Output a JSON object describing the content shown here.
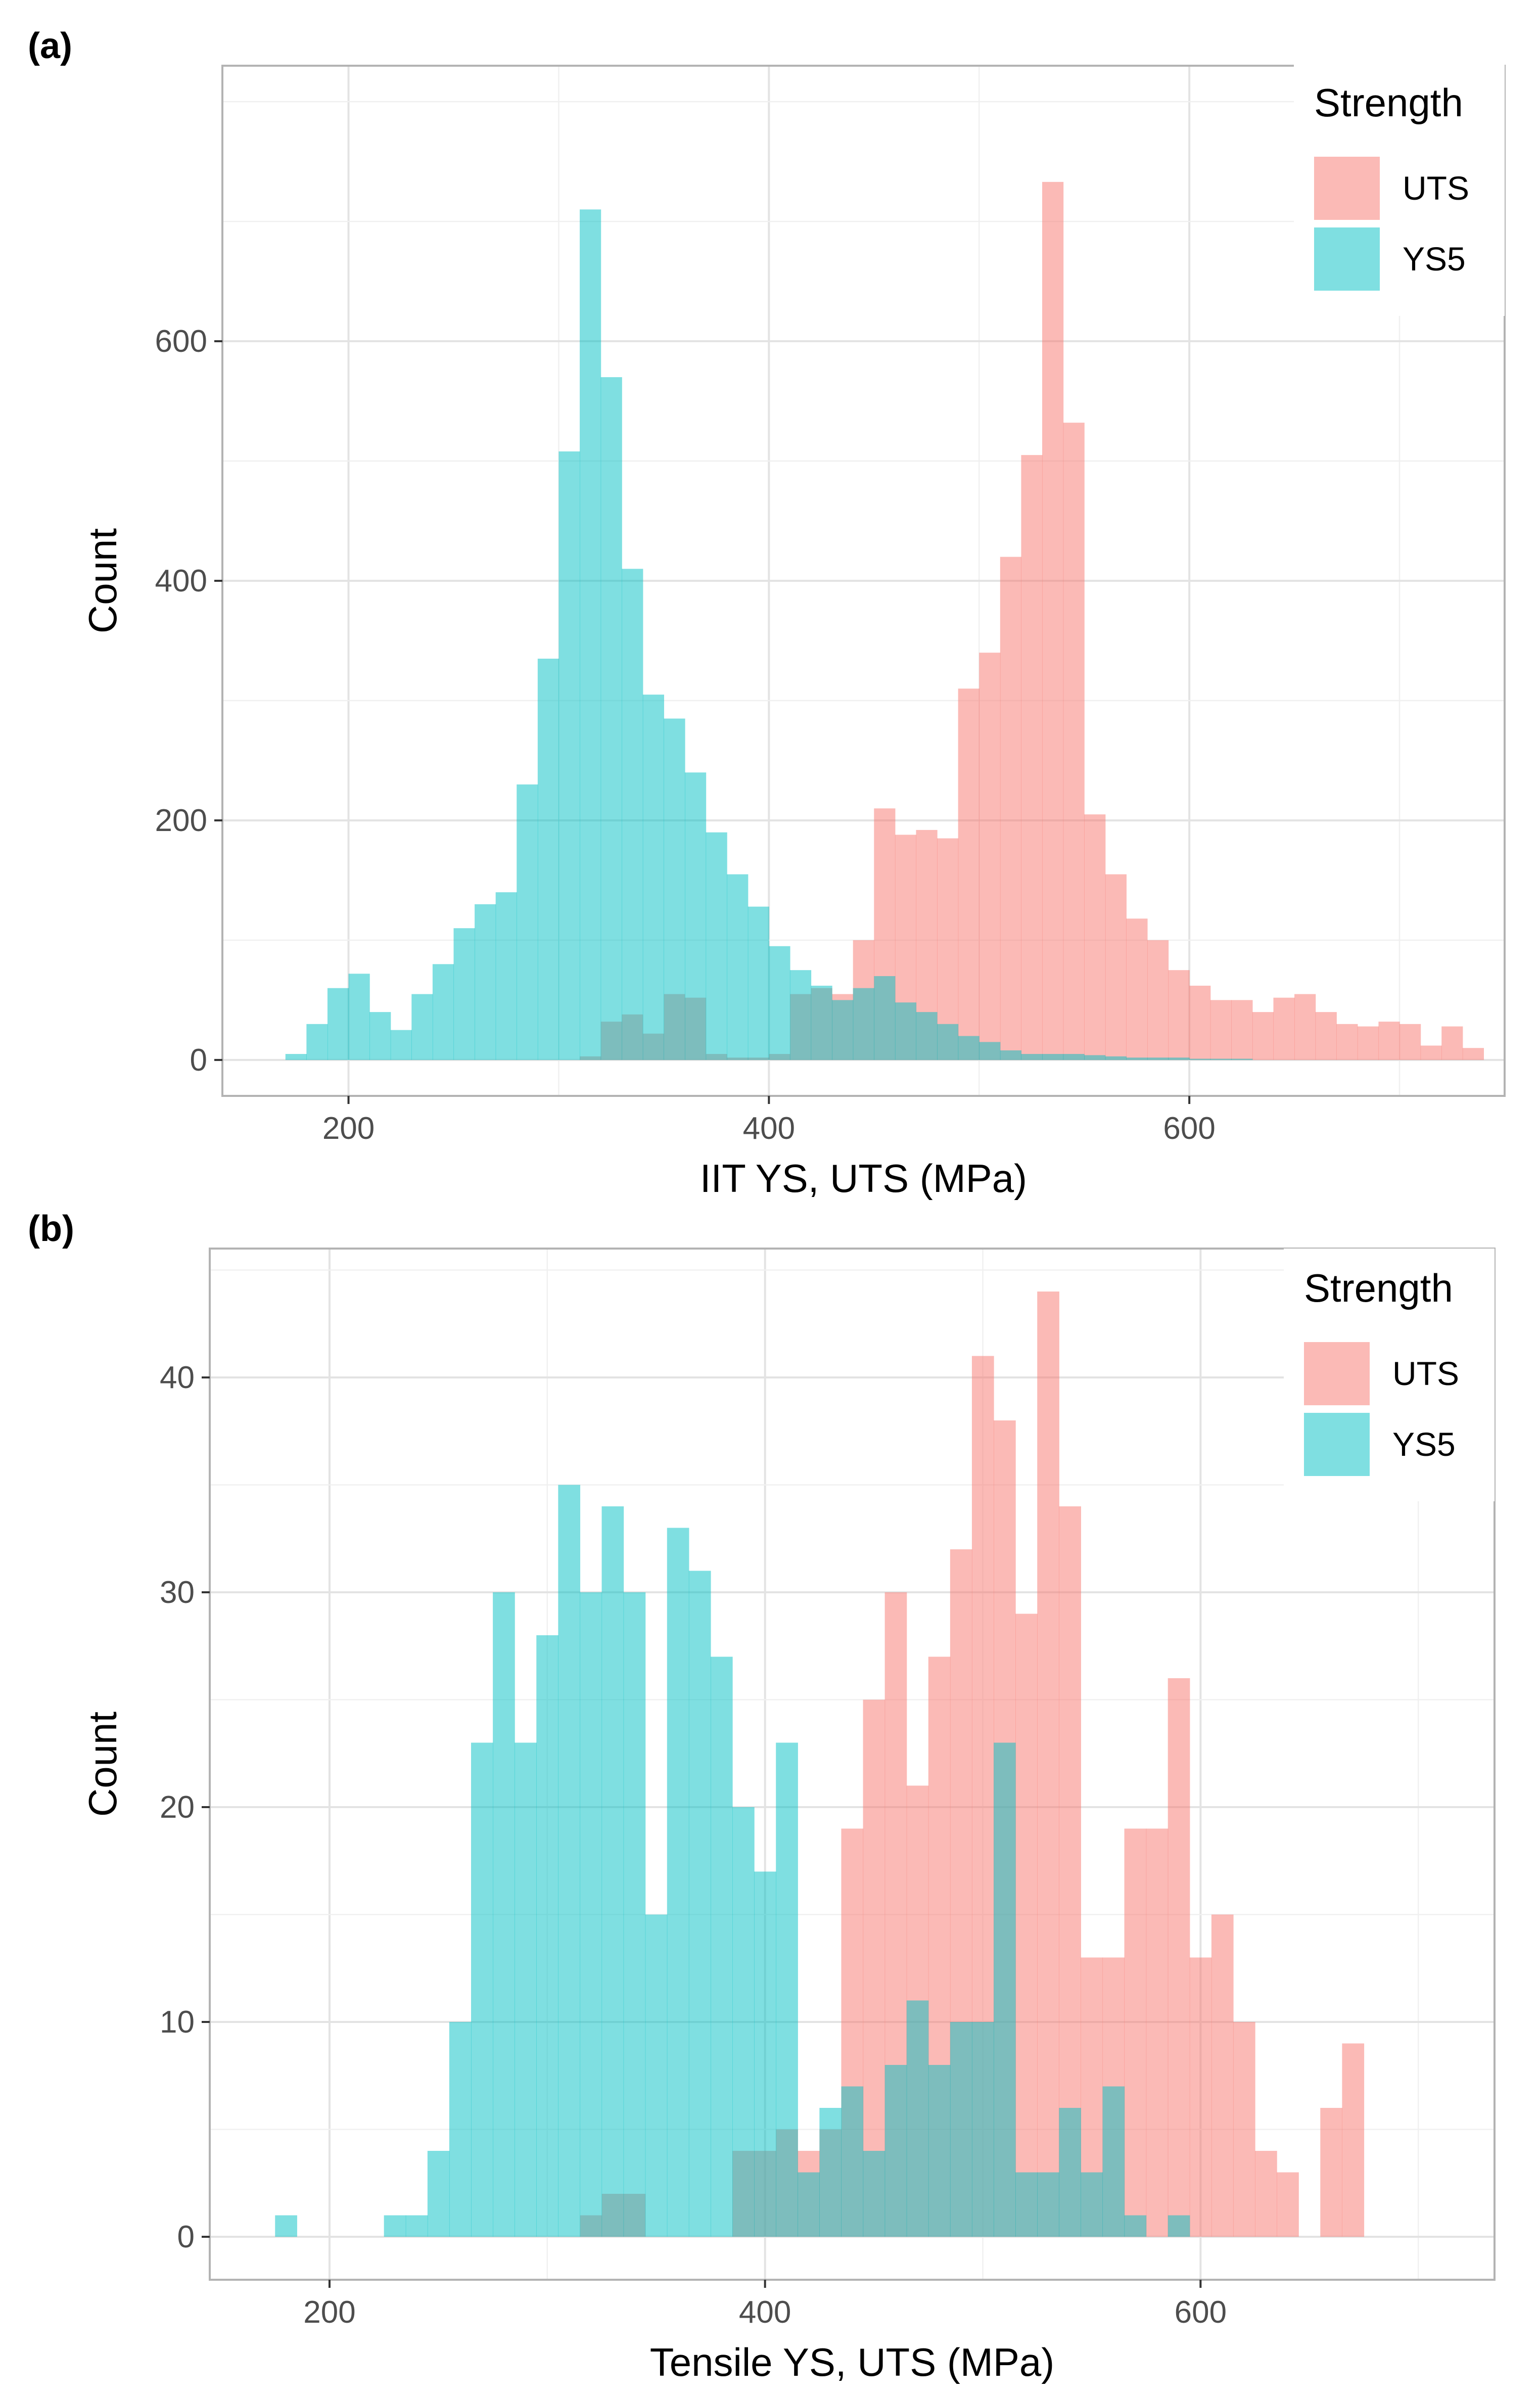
{
  "chart_data": [
    {
      "panel": "(a)",
      "type": "bar",
      "subtype": "histogram",
      "xlabel": "IIT YS, UTS (MPa)",
      "ylabel": "Count",
      "xlim": [
        140,
        750
      ],
      "ylim": [
        -30,
        830
      ],
      "xticks": [
        200,
        400,
        600
      ],
      "xtick_labels": [
        "200",
        "400",
        "600"
      ],
      "yticks": [
        0,
        200,
        400,
        600
      ],
      "ytick_labels": [
        "0",
        "200",
        "400",
        "600"
      ],
      "bin_width": 10,
      "legend": {
        "title": "Strength",
        "position": "top-right",
        "entries": [
          "UTS",
          "YS5"
        ]
      },
      "series": [
        {
          "name": "UTS",
          "color": "#F8766D",
          "x_start": 310,
          "values": [
            3,
            32,
            38,
            22,
            55,
            52,
            5,
            2,
            2,
            5,
            55,
            60,
            55,
            100,
            210,
            188,
            192,
            185,
            310,
            340,
            420,
            505,
            733,
            532,
            205,
            155,
            118,
            100,
            75,
            62,
            50,
            50,
            40,
            52,
            55,
            40,
            30,
            28,
            32,
            30,
            12,
            28,
            10
          ]
        },
        {
          "name": "YS5",
          "color": "#00BFC4",
          "x_start": 170,
          "values": [
            5,
            30,
            60,
            72,
            40,
            25,
            55,
            80,
            110,
            130,
            140,
            230,
            335,
            508,
            710,
            570,
            410,
            305,
            285,
            240,
            190,
            155,
            128,
            95,
            75,
            62,
            50,
            60,
            70,
            48,
            40,
            30,
            20,
            15,
            8,
            5,
            5,
            5,
            4,
            3,
            2,
            2,
            2,
            1,
            1,
            1
          ]
        }
      ]
    },
    {
      "panel": "(b)",
      "type": "bar",
      "subtype": "histogram",
      "xlabel": "Tensile YS, UTS (MPa)",
      "ylabel": "Count",
      "xlim": [
        145,
        735
      ],
      "ylim": [
        -2,
        46
      ],
      "xticks": [
        200,
        400,
        600
      ],
      "xtick_labels": [
        "200",
        "400",
        "600"
      ],
      "yticks": [
        0,
        10,
        20,
        30,
        40
      ],
      "ytick_labels": [
        "0",
        "10",
        "20",
        "30",
        "40"
      ],
      "bin_width": 10,
      "legend": {
        "title": "Strength",
        "position": "top-right",
        "entries": [
          "UTS",
          "YS5"
        ]
      },
      "series": [
        {
          "name": "UTS",
          "color": "#F8766D",
          "x_start": 315,
          "values": [
            1,
            2,
            2,
            0,
            0,
            0,
            0,
            4,
            4,
            5,
            4,
            5,
            19,
            25,
            30,
            21,
            27,
            32,
            41,
            38,
            29,
            44,
            34,
            13,
            13,
            19,
            19,
            26,
            13,
            15,
            10,
            4,
            3,
            0,
            6,
            9
          ]
        },
        {
          "name": "YS5",
          "color": "#00BFC4",
          "x_start": 175,
          "values": [
            1,
            0,
            0,
            0,
            0,
            1,
            1,
            4,
            10,
            23,
            30,
            23,
            28,
            35,
            30,
            34,
            30,
            15,
            33,
            31,
            27,
            20,
            17,
            23,
            3,
            6,
            7,
            4,
            8,
            11,
            8,
            10,
            10,
            23,
            3,
            3,
            6,
            3,
            7,
            1,
            0,
            1
          ]
        }
      ]
    }
  ]
}
